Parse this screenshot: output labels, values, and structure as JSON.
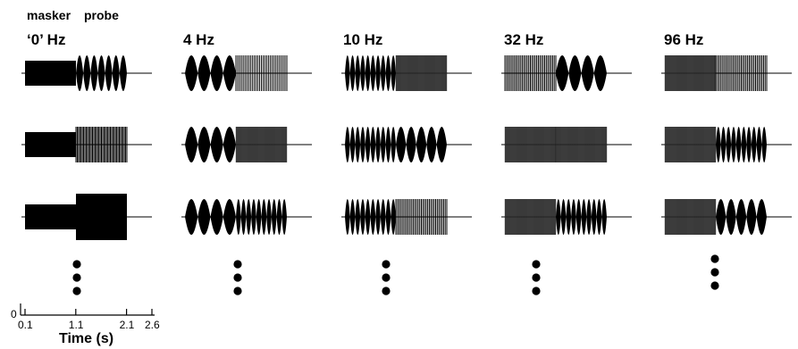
{
  "header": {
    "masker_label": "masker",
    "probe_label": "probe"
  },
  "columns": [
    {
      "title": "‘0’ Hz",
      "rows": [
        {
          "masker": {
            "kind": "flat"
          },
          "probe": {
            "kind": "lobes",
            "count": 7
          }
        },
        {
          "masker": {
            "kind": "flat"
          },
          "probe": {
            "kind": "dense",
            "count": 40
          }
        },
        {
          "masker": {
            "kind": "flat"
          },
          "probe": {
            "kind": "solid"
          }
        }
      ]
    },
    {
      "title": "4 Hz",
      "rows": [
        {
          "masker": {
            "kind": "lobes",
            "count": 4
          },
          "probe": {
            "kind": "dense",
            "count": 28
          }
        },
        {
          "masker": {
            "kind": "lobes",
            "count": 4
          },
          "probe": {
            "kind": "gray"
          }
        },
        {
          "masker": {
            "kind": "lobes",
            "count": 4
          },
          "probe": {
            "kind": "lobes",
            "count": 10
          }
        }
      ]
    },
    {
      "title": "10 Hz",
      "rows": [
        {
          "masker": {
            "kind": "lobes",
            "count": 10
          },
          "probe": {
            "kind": "gray"
          }
        },
        {
          "masker": {
            "kind": "lobes",
            "count": 10
          },
          "probe": {
            "kind": "lobes",
            "count": 5
          }
        },
        {
          "masker": {
            "kind": "lobes",
            "count": 10
          },
          "probe": {
            "kind": "dense",
            "count": 32
          }
        }
      ]
    },
    {
      "title": "32 Hz",
      "rows": [
        {
          "masker": {
            "kind": "dense",
            "count": 32
          },
          "probe": {
            "kind": "lobes",
            "count": 4
          }
        },
        {
          "masker": {
            "kind": "gray"
          },
          "probe": {
            "kind": "gray"
          }
        },
        {
          "masker": {
            "kind": "gray"
          },
          "probe": {
            "kind": "lobes",
            "count": 10
          }
        }
      ]
    },
    {
      "title": "96 Hz",
      "rows": [
        {
          "masker": {
            "kind": "gray"
          },
          "probe": {
            "kind": "dense",
            "count": 32
          }
        },
        {
          "masker": {
            "kind": "gray"
          },
          "probe": {
            "kind": "lobes",
            "count": 10
          }
        },
        {
          "masker": {
            "kind": "gray"
          },
          "probe": {
            "kind": "lobes",
            "count": 5
          }
        }
      ]
    }
  ],
  "axis": {
    "title": "Time (s)",
    "y_label": "0",
    "ticks": [
      {
        "value": 0.1,
        "label": "0.1"
      },
      {
        "value": 1.1,
        "label": "1.1"
      },
      {
        "value": 2.1,
        "label": "2.1"
      },
      {
        "value": 2.6,
        "label": "2.6"
      }
    ]
  },
  "colors": {
    "ink": "#000000",
    "gray": "#3a3a3a"
  }
}
